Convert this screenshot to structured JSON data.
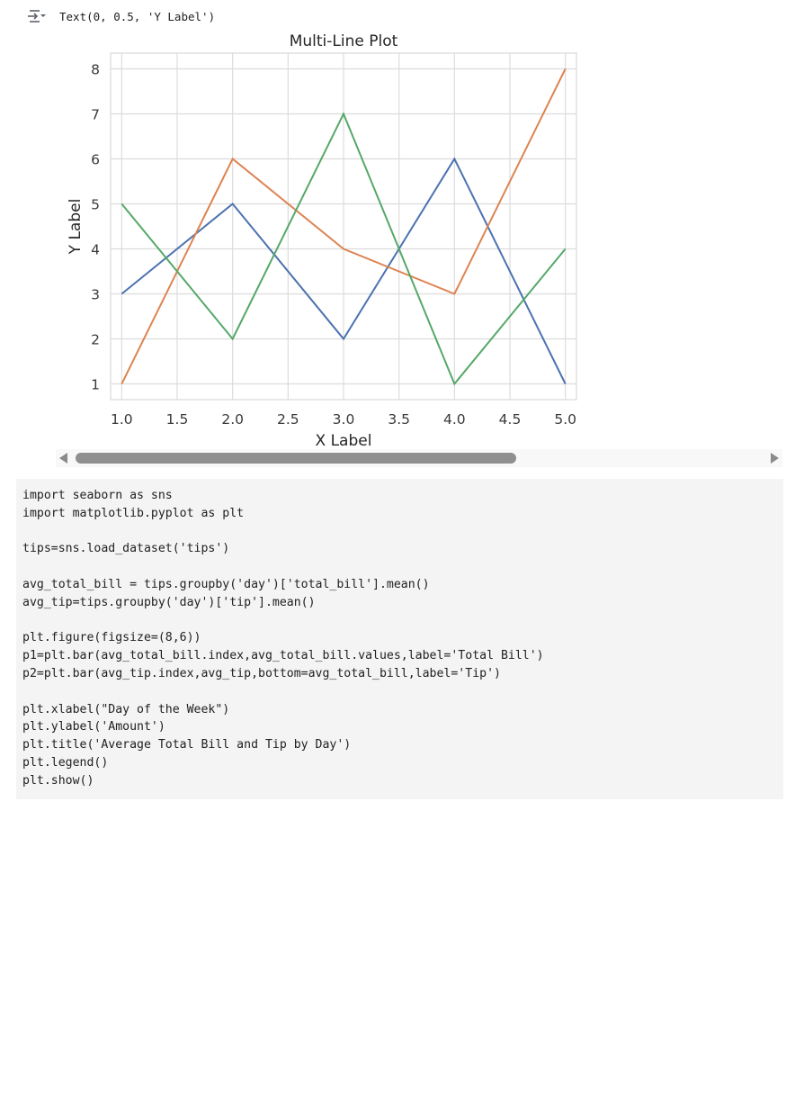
{
  "output": {
    "icon": "output-collapse-icon",
    "text": "Text(0, 0.5, 'Y Label')"
  },
  "chart_data": {
    "type": "line",
    "title": "Multi-Line Plot",
    "xlabel": "X Label",
    "ylabel": "Y Label",
    "x": [
      1.0,
      2.0,
      3.0,
      4.0,
      5.0
    ],
    "xticks": [
      "1.0",
      "1.5",
      "2.0",
      "2.5",
      "3.0",
      "3.5",
      "4.0",
      "4.5",
      "5.0"
    ],
    "yticks": [
      "1",
      "2",
      "3",
      "4",
      "5",
      "6",
      "7",
      "8"
    ],
    "xlim": [
      0.9,
      5.1
    ],
    "ylim": [
      0.65,
      8.35
    ],
    "grid": true,
    "series": [
      {
        "values": [
          3,
          5,
          2,
          6,
          1
        ],
        "color": "#4c72b0"
      },
      {
        "values": [
          1,
          6,
          4,
          3,
          8
        ],
        "color": "#dd8452"
      },
      {
        "values": [
          5,
          2,
          7,
          1,
          4
        ],
        "color": "#55a868"
      }
    ]
  },
  "code": {
    "lines": [
      "import seaborn as sns",
      "import matplotlib.pyplot as plt",
      "",
      "tips=sns.load_dataset('tips')",
      "",
      "avg_total_bill = tips.groupby('day')['total_bill'].mean()",
      "avg_tip=tips.groupby('day')['tip'].mean()",
      "",
      "plt.figure(figsize=(8,6))",
      "p1=plt.bar(avg_total_bill.index,avg_total_bill.values,label='Total Bill')",
      "p2=plt.bar(avg_tip.index,avg_tip,bottom=avg_total_bill,label='Tip')",
      "",
      "plt.xlabel(\"Day of the Week\")",
      "plt.ylabel('Amount')",
      "plt.title('Average Total Bill and Tip by Day')",
      "plt.legend()",
      "plt.show()"
    ]
  }
}
